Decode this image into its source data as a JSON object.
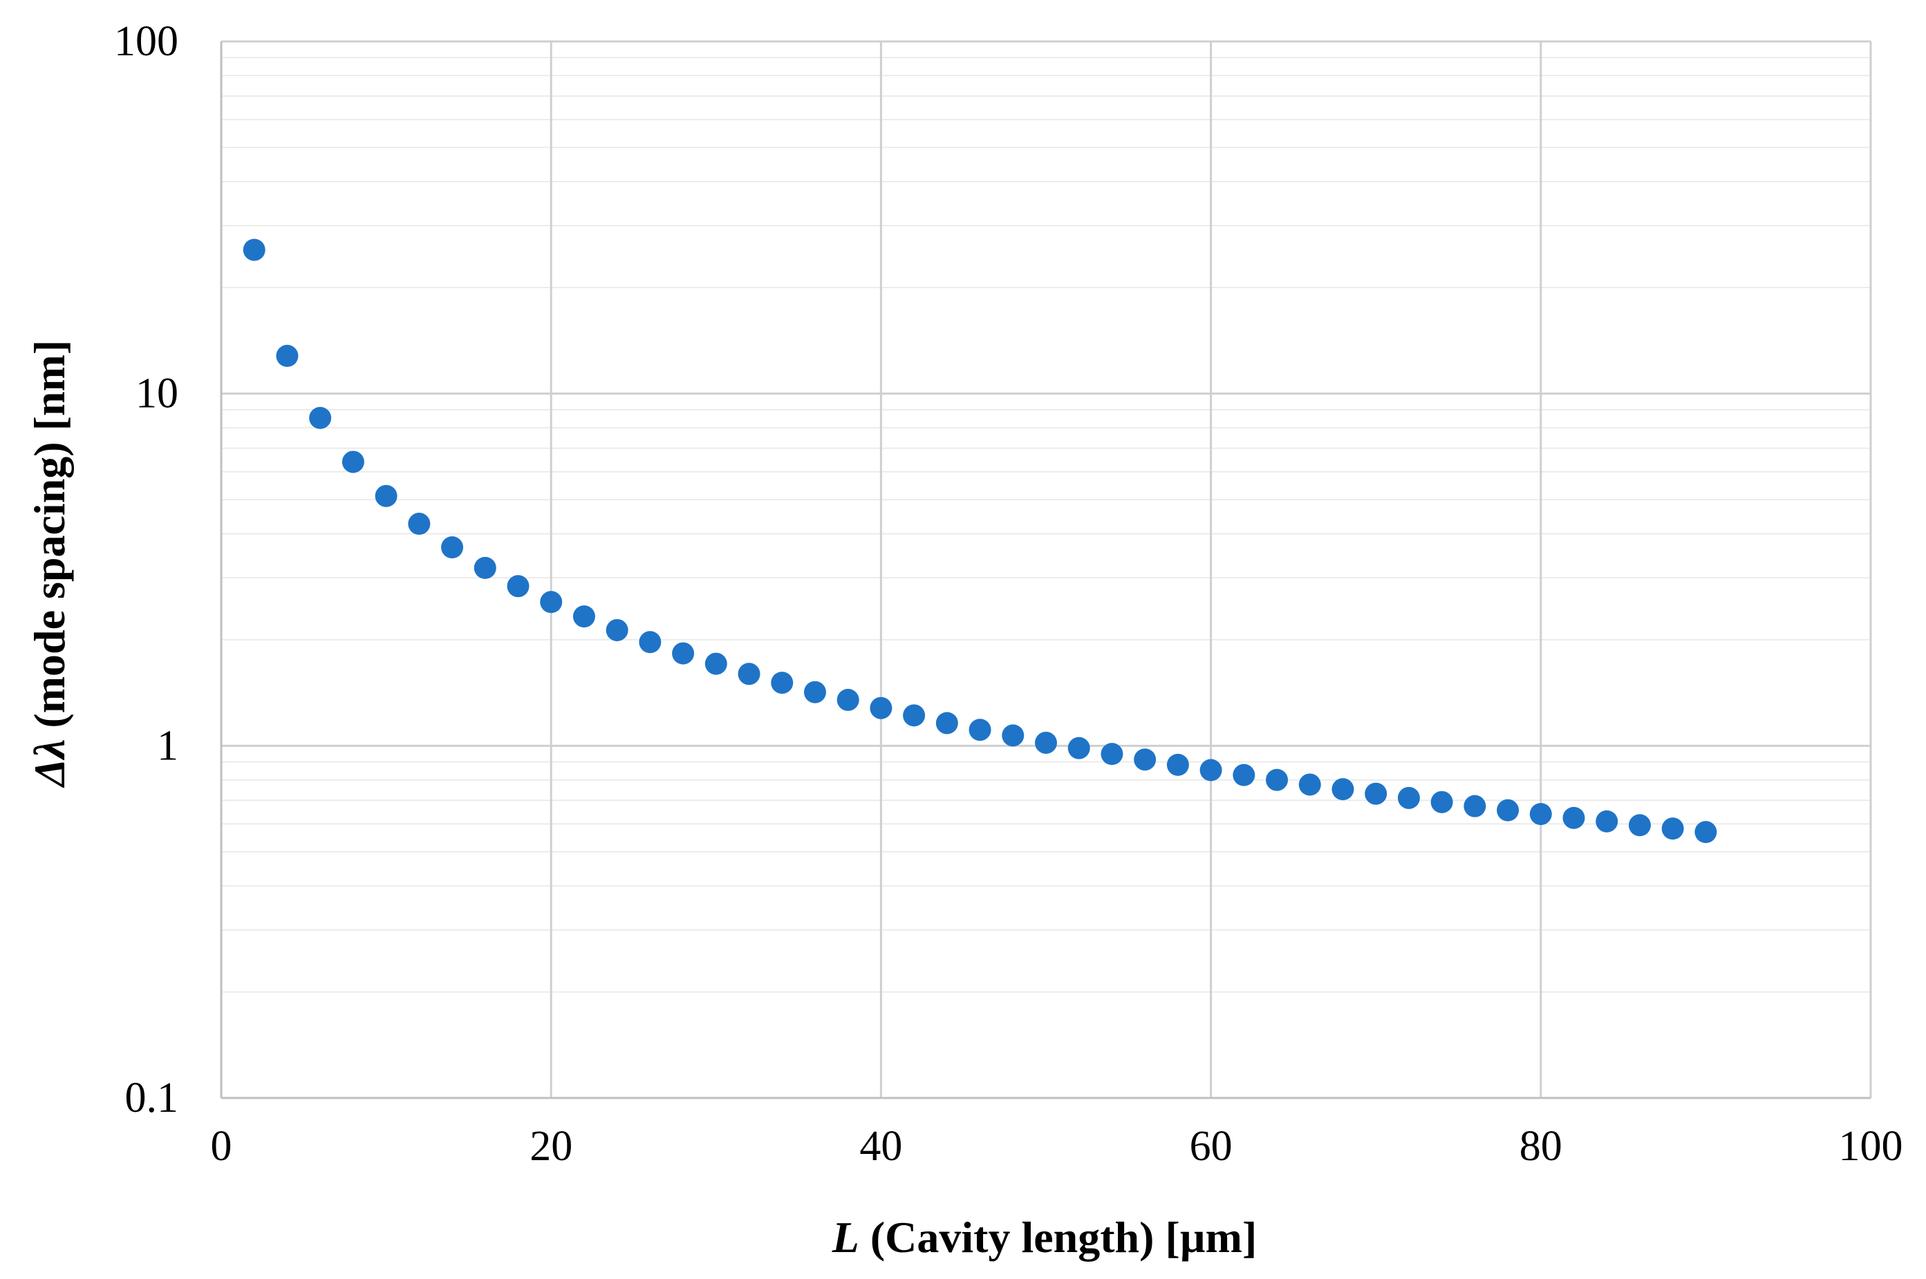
{
  "chart_data": {
    "type": "scatter",
    "title": "",
    "xlabel_symbol": "L",
    "xlabel_text": " (Cavity length) [µm]",
    "ylabel_symbol": "Δλ",
    "ylabel_text": " (mode spacing) [nm]",
    "xlim": [
      0,
      100
    ],
    "ylim": [
      0.1,
      100
    ],
    "yscale": "log",
    "x_ticks": [
      "0",
      "20",
      "40",
      "60",
      "80",
      "100"
    ],
    "x_tick_values": [
      0,
      20,
      40,
      60,
      80,
      100
    ],
    "y_ticks": [
      "0.1",
      "1",
      "10",
      "100"
    ],
    "y_tick_values": [
      0.1,
      1,
      10,
      100
    ],
    "grid": true,
    "legend": "none",
    "marker_color": "#1f74c8",
    "series": [
      {
        "name": "Mode spacing",
        "x": [
          2,
          4,
          6,
          8,
          10,
          12,
          14,
          16,
          18,
          20,
          22,
          24,
          26,
          28,
          30,
          32,
          34,
          36,
          38,
          40,
          42,
          44,
          46,
          48,
          50,
          52,
          54,
          56,
          58,
          60,
          62,
          64,
          66,
          68,
          70,
          72,
          74,
          76,
          78,
          80,
          82,
          84,
          86,
          88,
          90
        ],
        "y": [
          25.6,
          12.8,
          8.53,
          6.4,
          5.12,
          4.27,
          3.66,
          3.2,
          2.84,
          2.56,
          2.33,
          2.13,
          1.97,
          1.83,
          1.71,
          1.6,
          1.51,
          1.42,
          1.35,
          1.28,
          1.22,
          1.16,
          1.11,
          1.07,
          1.02,
          0.985,
          0.948,
          0.914,
          0.883,
          0.853,
          0.826,
          0.8,
          0.776,
          0.753,
          0.731,
          0.711,
          0.692,
          0.674,
          0.656,
          0.64,
          0.624,
          0.61,
          0.595,
          0.582,
          0.569
        ]
      }
    ]
  }
}
